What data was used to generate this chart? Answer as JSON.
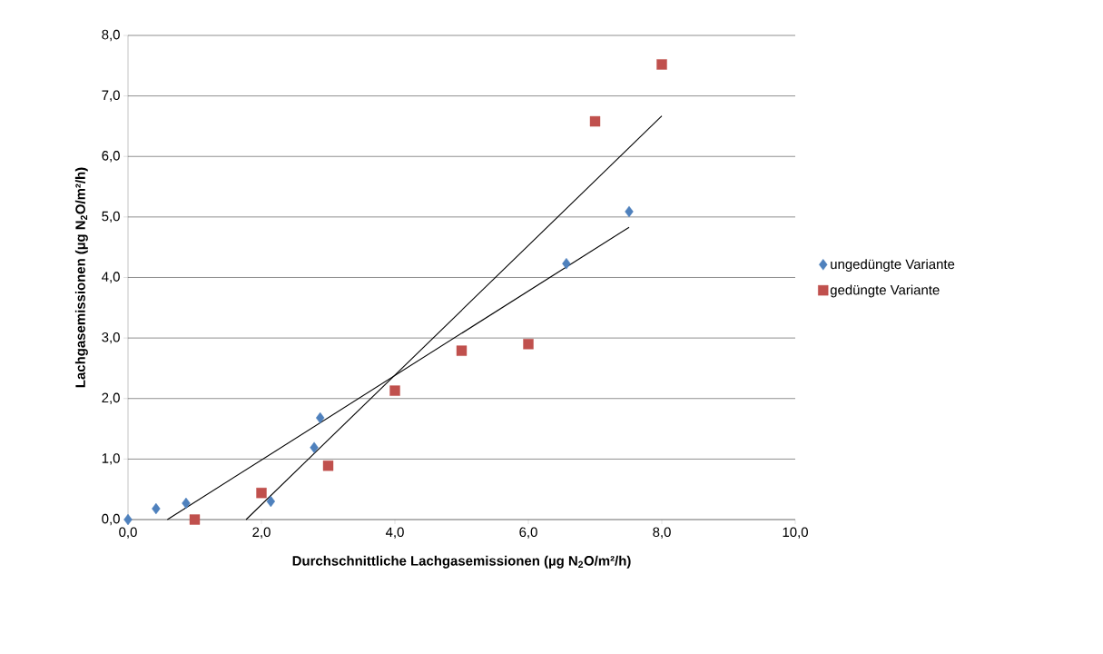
{
  "chart_data": {
    "type": "scatter",
    "xlabel": "Durchschnittliche Lachgasemissionen (µg N$_{2}$O/m²/h)",
    "ylabel": "Lachgasemissionen (µg N$_{2}$O/m²/h)",
    "xlim": [
      0,
      10
    ],
    "ylim": [
      0,
      8
    ],
    "xticks": [
      {
        "value": 0,
        "label": "0,0"
      },
      {
        "value": 2,
        "label": "2,0"
      },
      {
        "value": 4,
        "label": "4,0"
      },
      {
        "value": 6,
        "label": "6,0"
      },
      {
        "value": 8,
        "label": "8,0"
      },
      {
        "value": 10,
        "label": "10,0"
      }
    ],
    "yticks": [
      {
        "value": 0,
        "label": "0,0"
      },
      {
        "value": 1,
        "label": "1,0"
      },
      {
        "value": 2,
        "label": "2,0"
      },
      {
        "value": 3,
        "label": "3,0"
      },
      {
        "value": 4,
        "label": "4,0"
      },
      {
        "value": 5,
        "label": "5,0"
      },
      {
        "value": 6,
        "label": "6,0"
      },
      {
        "value": 7,
        "label": "7,0"
      },
      {
        "value": 8,
        "label": "8,0"
      }
    ],
    "grid": "y",
    "legend": "right",
    "series": [
      {
        "name": "ungedüngte Variante",
        "marker": "diamond",
        "color": "#4f81bd",
        "x": [
          0.0,
          0.42,
          0.87,
          2.14,
          2.79,
          2.88,
          6.57,
          7.51
        ],
        "values": [
          0.0,
          0.18,
          0.27,
          0.3,
          1.19,
          1.68,
          4.23,
          5.09
        ]
      },
      {
        "name": "gedüngte Variante",
        "marker": "square",
        "color": "#c0504d",
        "x": [
          1.0,
          2.0,
          3.0,
          4.0,
          5.0,
          6.0,
          7.0,
          8.0
        ],
        "values": [
          0.0,
          0.44,
          0.89,
          2.13,
          2.79,
          2.9,
          6.58,
          7.52
        ]
      },
      {
        "type": "line",
        "color": "#000000",
        "x": [
          0.59,
          7.51
        ],
        "values": [
          0.0,
          4.83
        ]
      },
      {
        "type": "line",
        "color": "#000000",
        "x": [
          1.77,
          8.0
        ],
        "values": [
          0.0,
          6.67
        ]
      }
    ]
  }
}
